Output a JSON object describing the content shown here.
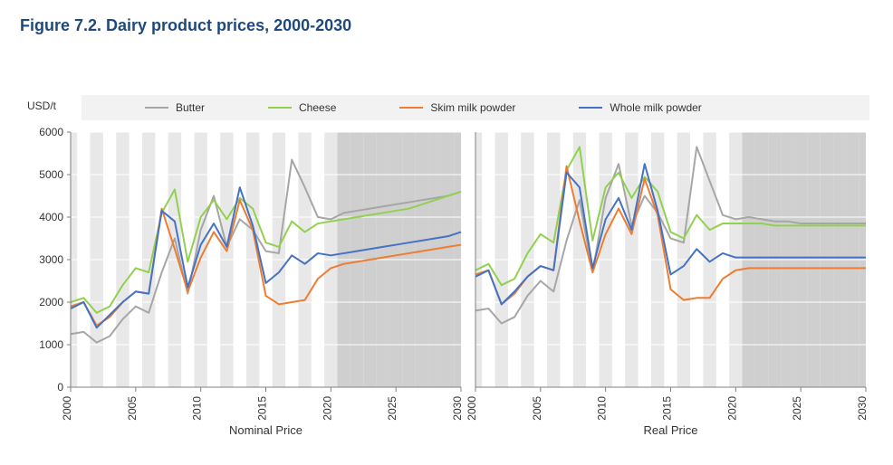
{
  "title": "Figure 7.2. Dairy product prices, 2000-2030",
  "y_axis_label": "USD/t",
  "legend": {
    "bg": "#f2f2f2",
    "items": [
      {
        "label": "Butter",
        "color": "#a6a6a6"
      },
      {
        "label": "Cheese",
        "color": "#92d050"
      },
      {
        "label": "Skim milk powder",
        "color": "#ed7d31"
      },
      {
        "label": "Whole milk powder",
        "color": "#4472c4"
      }
    ]
  },
  "chart": {
    "type": "line",
    "panels": [
      "Nominal Price",
      "Real Price"
    ],
    "x": {
      "years": [
        2000,
        2001,
        2002,
        2003,
        2004,
        2005,
        2006,
        2007,
        2008,
        2009,
        2010,
        2011,
        2012,
        2013,
        2014,
        2015,
        2016,
        2017,
        2018,
        2019,
        2020,
        2021,
        2022,
        2023,
        2024,
        2025,
        2026,
        2027,
        2028,
        2029,
        2030
      ],
      "tick_years": [
        2000,
        2005,
        2010,
        2015,
        2020,
        2025,
        2030
      ]
    },
    "y": {
      "min": 0,
      "max": 6000,
      "step": 1000
    },
    "forecast_from": 2021,
    "band_bg": "#e8e8e8",
    "forecast_bg": "#cfcfcf",
    "grid_color": "#ffffff",
    "axis_color": "#808080",
    "text_color": "#333333",
    "plot_bg": "#ffffff",
    "line_width": 2,
    "series_fontsize": 12,
    "title_color": "#1f497d",
    "title_fontsize": 18,
    "series": {
      "nominal": {
        "butter": [
          1250,
          1300,
          1050,
          1200,
          1600,
          1900,
          1750,
          2700,
          3500,
          2200,
          3700,
          4500,
          3300,
          3950,
          3700,
          3200,
          3150,
          5350,
          4700,
          4000,
          3950,
          4100,
          4150,
          4200,
          4250,
          4300,
          4350,
          4400,
          4450,
          4500,
          4600
        ],
        "cheese": [
          2000,
          2100,
          1750,
          1900,
          2400,
          2800,
          2700,
          4100,
          4650,
          2950,
          4000,
          4400,
          3950,
          4450,
          4200,
          3400,
          3300,
          3900,
          3650,
          3850,
          3900,
          3950,
          4000,
          4050,
          4100,
          4150,
          4200,
          4300,
          4400,
          4500,
          4600
        ],
        "smp": [
          1900,
          2000,
          1450,
          1650,
          2000,
          2250,
          2200,
          4200,
          3250,
          2250,
          3050,
          3650,
          3200,
          4400,
          3700,
          2150,
          1950,
          2000,
          2050,
          2550,
          2800,
          2900,
          2950,
          3000,
          3050,
          3100,
          3150,
          3200,
          3250,
          3300,
          3350
        ],
        "wmp": [
          1850,
          2000,
          1400,
          1700,
          2000,
          2250,
          2200,
          4150,
          3900,
          2350,
          3350,
          3850,
          3300,
          4700,
          3800,
          2450,
          2700,
          3100,
          2900,
          3150,
          3100,
          3150,
          3200,
          3250,
          3300,
          3350,
          3400,
          3450,
          3500,
          3550,
          3650
        ]
      },
      "real": {
        "butter": [
          1800,
          1850,
          1500,
          1650,
          2150,
          2500,
          2250,
          3450,
          4400,
          2700,
          4450,
          5250,
          3800,
          4500,
          4100,
          3500,
          3400,
          5650,
          4850,
          4050,
          3950,
          4000,
          3950,
          3900,
          3900,
          3850,
          3850,
          3850,
          3850,
          3850,
          3850
        ],
        "cheese": [
          2750,
          2900,
          2400,
          2550,
          3150,
          3600,
          3400,
          5100,
          5650,
          3450,
          4700,
          5050,
          4450,
          4950,
          4600,
          3650,
          3500,
          4050,
          3700,
          3850,
          3850,
          3850,
          3850,
          3800,
          3800,
          3800,
          3800,
          3800,
          3800,
          3800,
          3800
        ],
        "smp": [
          2650,
          2750,
          1950,
          2200,
          2600,
          2850,
          2750,
          5200,
          3900,
          2700,
          3600,
          4200,
          3600,
          4900,
          4050,
          2300,
          2050,
          2100,
          2100,
          2550,
          2750,
          2800,
          2800,
          2800,
          2800,
          2800,
          2800,
          2800,
          2800,
          2800,
          2800
        ],
        "wmp": [
          2600,
          2750,
          1950,
          2250,
          2600,
          2850,
          2750,
          5050,
          4700,
          2800,
          3950,
          4450,
          3700,
          5250,
          4150,
          2650,
          2850,
          3250,
          2950,
          3150,
          3050,
          3050,
          3050,
          3050,
          3050,
          3050,
          3050,
          3050,
          3050,
          3050,
          3050
        ]
      }
    }
  }
}
